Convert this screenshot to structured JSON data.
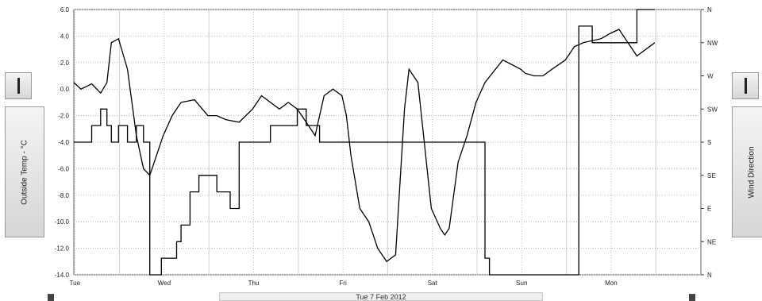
{
  "left_axis_label": "Outside Temp - °C",
  "right_axis_label": "Wind Direction",
  "date_label": "Tue 7 Feb 2012",
  "chart_data": {
    "type": "line",
    "x_categories": [
      "Tue",
      "Wed",
      "Thu",
      "Fri",
      "Sat",
      "Sun",
      "Mon"
    ],
    "y_left": {
      "label": "Outside Temp - °C",
      "ticks": [
        "6.0",
        "4.0",
        "2.0",
        "0.0",
        "-2.0",
        "-4.0",
        "-6.0",
        "-8.0",
        "-10.0",
        "-12.0",
        "-14.0"
      ],
      "range": [
        -14,
        6
      ]
    },
    "y_right": {
      "label": "Wind Direction",
      "ticks": [
        "N",
        "NW",
        "W",
        "SW",
        "S",
        "SE",
        "E",
        "NE",
        "N"
      ]
    },
    "grid": true,
    "series": [
      {
        "axis": "left",
        "color": "#000000",
        "x": [
          0,
          0.08,
          0.2,
          0.3,
          0.37,
          0.42,
          0.5,
          0.6,
          0.7,
          0.78,
          0.85,
          0.95,
          1.0,
          1.1,
          1.2,
          1.35,
          1.5,
          1.6,
          1.7,
          1.85,
          2.0,
          2.1,
          2.2,
          2.3,
          2.4,
          2.5,
          2.6,
          2.7,
          2.8,
          2.9,
          3.0,
          3.05,
          3.1,
          3.2,
          3.3,
          3.4,
          3.5,
          3.6,
          3.7,
          3.75,
          3.85,
          4.0,
          4.1,
          4.15,
          4.2,
          4.3,
          4.4,
          4.5,
          4.6,
          4.8,
          5.0,
          5.05,
          5.15,
          5.25,
          5.35,
          5.5,
          5.6,
          5.7,
          5.9,
          6.0,
          6.1,
          6.2,
          6.3,
          6.4,
          6.5
        ],
        "y": [
          0.5,
          0.0,
          0.4,
          -0.3,
          0.5,
          3.5,
          3.8,
          1.5,
          -3.5,
          -6.0,
          -6.5,
          -4.5,
          -3.5,
          -2.0,
          -1.0,
          -0.8,
          -2.0,
          -2.0,
          -2.3,
          -2.5,
          -1.5,
          -0.5,
          -1.0,
          -1.5,
          -1.0,
          -1.5,
          -2.5,
          -3.5,
          -0.5,
          0.0,
          -0.5,
          -2.0,
          -5.0,
          -9.0,
          -10.0,
          -12.0,
          -13.0,
          -12.5,
          -1.5,
          1.5,
          0.5,
          -9.0,
          -10.5,
          -11.0,
          -10.5,
          -5.5,
          -3.5,
          -1.0,
          0.5,
          2.2,
          1.5,
          1.2,
          1.0,
          1.0,
          1.5,
          2.2,
          3.2,
          3.5,
          3.8,
          4.2,
          4.5,
          3.5,
          2.5,
          3.0,
          3.5
        ]
      },
      {
        "axis": "right",
        "color": "#000000",
        "x": [
          0,
          0.2,
          0.2,
          0.3,
          0.3,
          0.37,
          0.37,
          0.42,
          0.42,
          0.5,
          0.5,
          0.6,
          0.6,
          0.7,
          0.7,
          0.78,
          0.78,
          0.85,
          0.85,
          0.98,
          0.98,
          1.15,
          1.15,
          1.2,
          1.2,
          1.3,
          1.3,
          1.4,
          1.4,
          1.6,
          1.6,
          1.75,
          1.75,
          1.85,
          1.85,
          2.2,
          2.2,
          2.5,
          2.5,
          2.6,
          2.6,
          2.75,
          2.75,
          3.0,
          3.0,
          3.2,
          3.2,
          3.5,
          3.5,
          3.9,
          3.9,
          4.25,
          4.25,
          4.6,
          4.6,
          4.65,
          4.65,
          5.0,
          5.0,
          5.65,
          5.65,
          5.8,
          5.8,
          6.3,
          6.3,
          6.5
        ],
        "y": [
          4,
          4,
          3.5,
          3.5,
          3,
          3,
          3.5,
          3.5,
          4,
          4,
          3.5,
          3.5,
          4,
          4,
          3.5,
          3.5,
          4,
          4,
          8,
          8,
          7.5,
          7.5,
          7,
          7,
          6.5,
          6.5,
          5.5,
          5.5,
          5,
          5,
          5.5,
          5.5,
          6,
          6,
          4,
          4,
          3.5,
          3.5,
          3,
          3,
          3.5,
          3.5,
          4,
          4,
          4,
          4,
          4,
          4,
          4,
          4,
          4,
          4,
          4,
          4,
          7.5,
          7.5,
          8,
          8,
          8,
          8,
          0.5,
          0.5,
          1,
          1,
          0,
          0
        ]
      }
    ]
  }
}
